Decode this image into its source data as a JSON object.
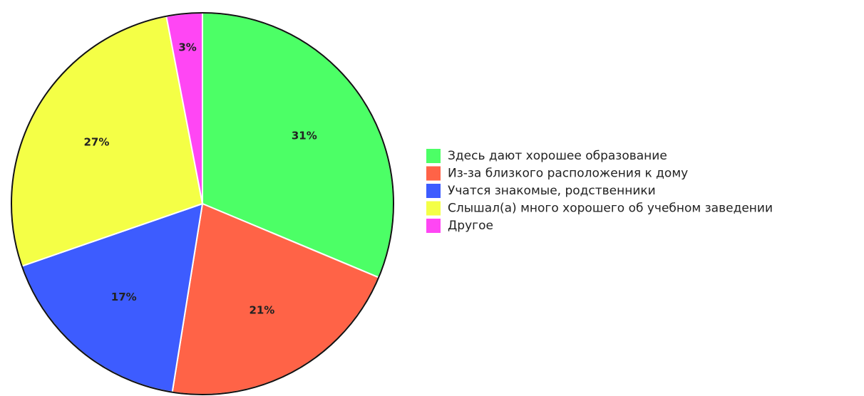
{
  "chart_data": {
    "type": "pie",
    "categories": [
      "Здесь дают хорошее образование",
      "Из-за близкого расположения к дому",
      "Учатся знакомые, родственники",
      "Слышал(а) много хорошего об учебном заведении",
      "Другое"
    ],
    "values": [
      31,
      21,
      17,
      27,
      3
    ],
    "value_labels": [
      "31%",
      "21%",
      "17%",
      "27%",
      "3%"
    ],
    "colors": [
      "#4cff66",
      "#ff6347",
      "#3d5cff",
      "#f4ff46",
      "#ff46f4"
    ],
    "legend": "right"
  }
}
